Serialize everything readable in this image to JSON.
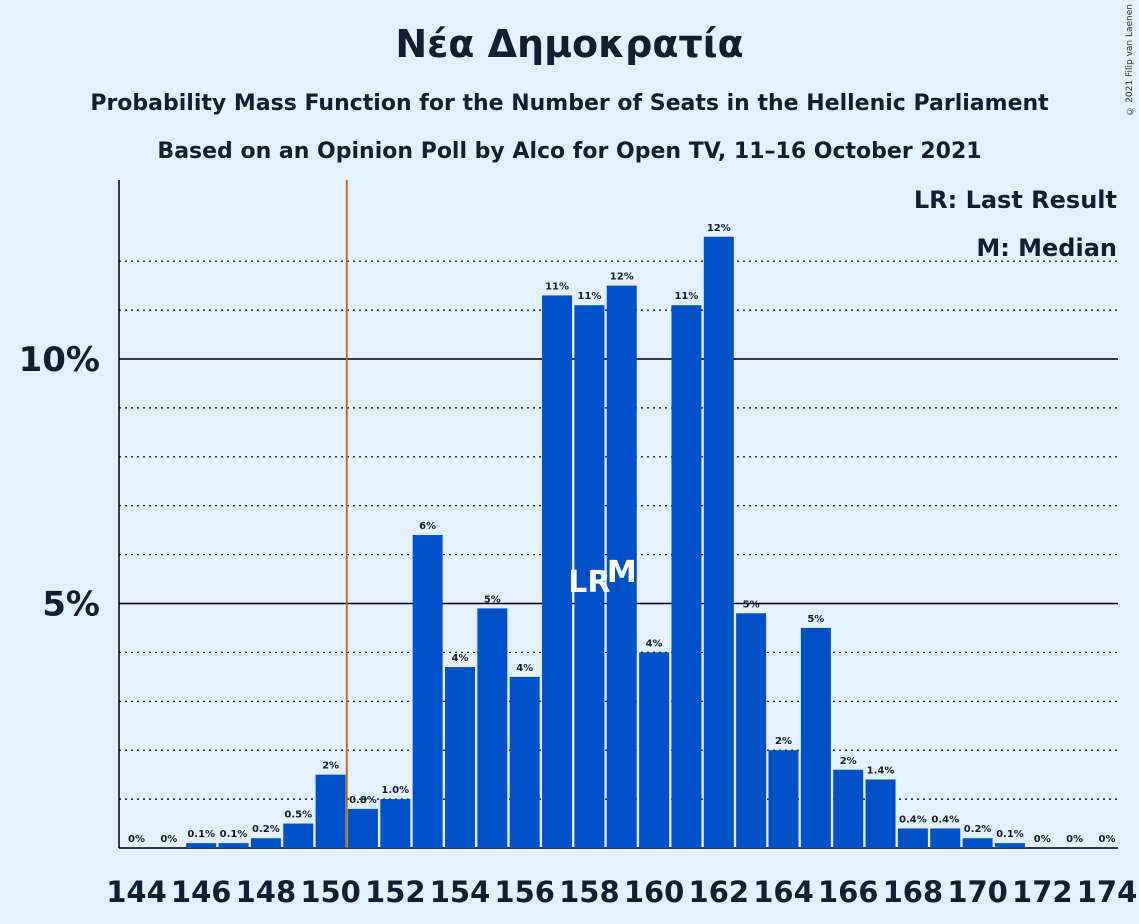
{
  "header": {
    "title": "Νέα Δημοκρατία",
    "subtitle1": "Probability Mass Function for the Number of Seats in the Hellenic Parliament",
    "subtitle2": "Based on an Opinion Poll by Alco for Open TV, 11–16 October 2021",
    "credit": "© 2021 Filip van Laenen"
  },
  "legend": {
    "last_result": "LR: Last Result",
    "median": "M: Median"
  },
  "chart_data": {
    "type": "bar",
    "title": "Νέα Δημοκρατία",
    "x": [
      144,
      145,
      146,
      147,
      148,
      149,
      150,
      151,
      152,
      153,
      154,
      155,
      156,
      157,
      158,
      159,
      160,
      161,
      162,
      163,
      164,
      165,
      166,
      167,
      168,
      169,
      170,
      171,
      172,
      173,
      174
    ],
    "values": [
      0,
      0,
      0.1,
      0.1,
      0.2,
      0.5,
      1.5,
      0.8,
      1.0,
      6.4,
      3.7,
      4.9,
      3.5,
      11.3,
      11.1,
      11.5,
      4.0,
      11.1,
      12.5,
      4.8,
      2.0,
      4.5,
      1.6,
      1.4,
      0.4,
      0.4,
      0.2,
      0.1,
      0,
      0,
      0
    ],
    "labels": [
      "0%",
      "0%",
      "0.1%",
      "0.1%",
      "0.2%",
      "0.5%",
      "2%",
      "0.8%",
      "1.0%",
      "6%",
      "4%",
      "5%",
      "4%",
      "11%",
      "11%",
      "12%",
      "4%",
      "11%",
      "12%",
      "5%",
      "2%",
      "5%",
      "2%",
      "1.4%",
      "0.4%",
      "0.4%",
      "0.2%",
      "0.1%",
      "0%",
      "0%",
      "0%"
    ],
    "x_tick_labels": [
      "144",
      "146",
      "148",
      "150",
      "152",
      "154",
      "156",
      "158",
      "160",
      "162",
      "164",
      "166",
      "168",
      "170",
      "172",
      "174"
    ],
    "y_tick_labels": [
      "5%",
      "10%"
    ],
    "y_ticks": [
      5,
      10
    ],
    "ylim": [
      0,
      13.6
    ],
    "last_result_seat": 151,
    "last_result_marker": "LR",
    "median_seat": 159,
    "median_marker": "M",
    "grid": "dotted minor lines every 1%, solid major lines at 5% and 10%",
    "colors": {
      "bar": "#0051c8",
      "last_result_line": "#b5651d",
      "grid": "#000000",
      "background": "#e4f1fd"
    }
  }
}
